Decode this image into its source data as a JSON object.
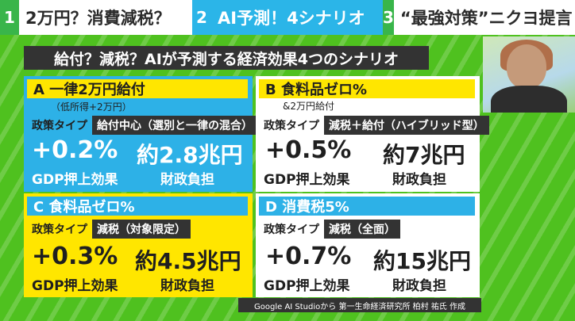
{
  "tabs": [
    {
      "num": "1",
      "label": "2万円？消費減税？"
    },
    {
      "num": "2",
      "label": "AI予測！4シナリオ"
    },
    {
      "num": "3",
      "label": "“最強対策”ニクヨ提言"
    }
  ],
  "headline": "給付？減税？AIが予測する経済効果4つのシナリオ",
  "policy_type_label": "政策タイプ",
  "gdp_caption": "GDP押上効果",
  "cost_caption": "財政負担",
  "scenarios": {
    "A": {
      "title": "A 一律2万円給付",
      "sub": "（低所得+2万円）",
      "policy": "給付中心（選別と一律の混合）",
      "gdp": "+0.2%",
      "cost": "約2.8兆円"
    },
    "B": {
      "title": "B 食料品ゼロ%",
      "sub": "&2万円給付",
      "policy": "減税＋給付（ハイブリッド型）",
      "gdp": "+0.5%",
      "cost": "約7兆円"
    },
    "C": {
      "title": "C 食料品ゼロ%",
      "policy": "減税（対象限定）",
      "gdp": "+0.3%",
      "cost": "約4.5兆円"
    },
    "D": {
      "title": "D 消費税5%",
      "policy": "減税（全面）",
      "gdp": "+0.7%",
      "cost": "約15兆円"
    }
  },
  "credit": "Google AI Studioから 第一生命経済研究所 柏村 祐氏 作成",
  "colors": {
    "green": "#4fc11f",
    "blue": "#2db1e7",
    "yellow": "#ffe600",
    "dark": "#333333"
  }
}
